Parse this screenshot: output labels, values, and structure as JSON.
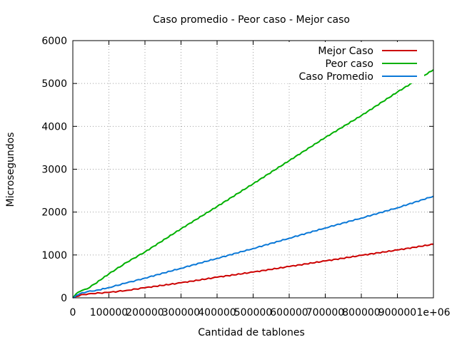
{
  "chart_data": {
    "type": "line",
    "title": "Caso promedio - Peor caso - Mejor caso",
    "xlabel": "Cantidad de tablones",
    "ylabel": "Microsegundos",
    "xlim": [
      0,
      1000000
    ],
    "ylim": [
      0,
      6000
    ],
    "x_ticks": [
      {
        "value": 0,
        "label": "0"
      },
      {
        "value": 100000,
        "label": "100000"
      },
      {
        "value": 200000,
        "label": "200000"
      },
      {
        "value": 300000,
        "label": "300000"
      },
      {
        "value": 400000,
        "label": "400000"
      },
      {
        "value": 500000,
        "label": "500000"
      },
      {
        "value": 600000,
        "label": "600000"
      },
      {
        "value": 700000,
        "label": "700000"
      },
      {
        "value": 800000,
        "label": "800000"
      },
      {
        "value": 900000,
        "label": "900000"
      },
      {
        "value": 1000000,
        "label": "1e+06"
      }
    ],
    "y_ticks": [
      {
        "value": 0,
        "label": "0"
      },
      {
        "value": 1000,
        "label": "1000"
      },
      {
        "value": 2000,
        "label": "2000"
      },
      {
        "value": 3000,
        "label": "3000"
      },
      {
        "value": 4000,
        "label": "4000"
      },
      {
        "value": 5000,
        "label": "5000"
      },
      {
        "value": 6000,
        "label": "6000"
      }
    ],
    "grid": true,
    "legend_position": "top-right",
    "series": [
      {
        "name": "Mejor Caso",
        "color": "#cc0000",
        "x": [
          0,
          10000,
          30000,
          50000,
          100000,
          150000,
          200000,
          300000,
          400000,
          500000,
          600000,
          700000,
          800000,
          900000,
          1000000
        ],
        "values": [
          0,
          30,
          80,
          100,
          125,
          175,
          235,
          350,
          480,
          600,
          730,
          860,
          990,
          1115,
          1250
        ]
      },
      {
        "name": "Peor caso",
        "color": "#00b000",
        "x": [
          0,
          10000,
          20000,
          40000,
          60000,
          100000,
          150000,
          200000,
          300000,
          400000,
          500000,
          600000,
          700000,
          800000,
          900000,
          1000000
        ],
        "values": [
          0,
          100,
          150,
          210,
          320,
          560,
          830,
          1070,
          1610,
          2130,
          2660,
          3200,
          3740,
          4250,
          4800,
          5320
        ]
      },
      {
        "name": "Caso Promedio",
        "color": "#0a78d7",
        "x": [
          0,
          10000,
          20000,
          40000,
          60000,
          100000,
          150000,
          200000,
          300000,
          400000,
          500000,
          600000,
          700000,
          800000,
          900000,
          1000000
        ],
        "values": [
          0,
          60,
          100,
          145,
          160,
          240,
          350,
          460,
          690,
          920,
          1150,
          1390,
          1630,
          1860,
          2100,
          2370
        ]
      }
    ]
  }
}
